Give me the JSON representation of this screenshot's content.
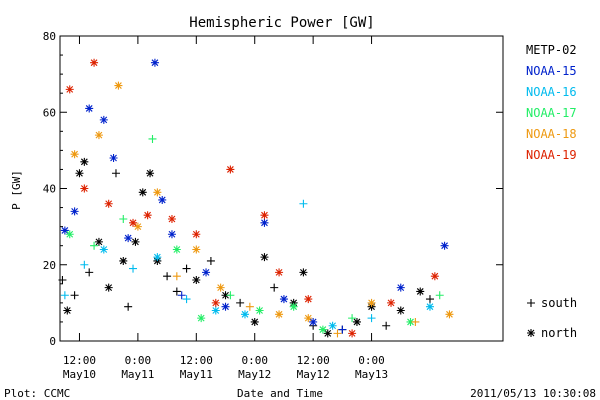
{
  "chart_data": {
    "type": "scatter",
    "title": "Hemispheric Power [GW]",
    "ylabel": "P [GW]",
    "xlabel": "Date and Time",
    "ylim": [
      0,
      80
    ],
    "yticks": [
      0,
      20,
      40,
      60,
      80
    ],
    "xlim": [
      "2011-05-10T08:00",
      "2011-05-14T03:00"
    ],
    "xticks": [
      {
        "time": "2011-05-10T12:00",
        "line1": "12:00",
        "line2": "May10"
      },
      {
        "time": "2011-05-11T00:00",
        "line1": "0:00",
        "line2": "May11"
      },
      {
        "time": "2011-05-11T12:00",
        "line1": "12:00",
        "line2": "May11"
      },
      {
        "time": "2011-05-12T00:00",
        "line1": "0:00",
        "line2": "May12"
      },
      {
        "time": "2011-05-12T12:00",
        "line1": "12:00",
        "line2": "May12"
      },
      {
        "time": "2011-05-13T00:00",
        "line1": "0:00",
        "line2": "May13"
      }
    ],
    "series": [
      {
        "name": "METP-02",
        "color": "#000000",
        "points": [
          {
            "x": "2011-05-10T08:30",
            "y": 16,
            "h": "south"
          },
          {
            "x": "2011-05-10T09:30",
            "y": 8,
            "h": "north"
          },
          {
            "x": "2011-05-10T11:00",
            "y": 12,
            "h": "south"
          },
          {
            "x": "2011-05-10T12:00",
            "y": 44,
            "h": "north"
          },
          {
            "x": "2011-05-10T13:00",
            "y": 47,
            "h": "north"
          },
          {
            "x": "2011-05-10T14:00",
            "y": 18,
            "h": "south"
          },
          {
            "x": "2011-05-10T16:00",
            "y": 26,
            "h": "north"
          },
          {
            "x": "2011-05-10T18:00",
            "y": 14,
            "h": "north"
          },
          {
            "x": "2011-05-10T19:30",
            "y": 44,
            "h": "south"
          },
          {
            "x": "2011-05-10T21:00",
            "y": 21,
            "h": "north"
          },
          {
            "x": "2011-05-10T22:00",
            "y": 9,
            "h": "south"
          },
          {
            "x": "2011-05-10T23:30",
            "y": 26,
            "h": "north"
          },
          {
            "x": "2011-05-11T01:00",
            "y": 39,
            "h": "north"
          },
          {
            "x": "2011-05-11T02:30",
            "y": 44,
            "h": "north"
          },
          {
            "x": "2011-05-11T04:00",
            "y": 21,
            "h": "north"
          },
          {
            "x": "2011-05-11T06:00",
            "y": 17,
            "h": "south"
          },
          {
            "x": "2011-05-11T08:00",
            "y": 13,
            "h": "south"
          },
          {
            "x": "2011-05-11T10:00",
            "y": 19,
            "h": "south"
          },
          {
            "x": "2011-05-11T12:00",
            "y": 16,
            "h": "north"
          },
          {
            "x": "2011-05-11T15:00",
            "y": 21,
            "h": "south"
          },
          {
            "x": "2011-05-11T18:00",
            "y": 12,
            "h": "north"
          },
          {
            "x": "2011-05-11T21:00",
            "y": 10,
            "h": "south"
          },
          {
            "x": "2011-05-12T00:00",
            "y": 5,
            "h": "north"
          },
          {
            "x": "2011-05-12T02:00",
            "y": 22,
            "h": "north"
          },
          {
            "x": "2011-05-12T04:00",
            "y": 14,
            "h": "south"
          },
          {
            "x": "2011-05-12T08:00",
            "y": 10,
            "h": "north"
          },
          {
            "x": "2011-05-12T10:00",
            "y": 18,
            "h": "north"
          },
          {
            "x": "2011-05-12T12:00",
            "y": 4,
            "h": "south"
          },
          {
            "x": "2011-05-12T15:00",
            "y": 2,
            "h": "north"
          },
          {
            "x": "2011-05-12T18:00",
            "y": 3,
            "h": "south"
          },
          {
            "x": "2011-05-12T21:00",
            "y": 5,
            "h": "north"
          },
          {
            "x": "2011-05-13T00:00",
            "y": 9,
            "h": "north"
          },
          {
            "x": "2011-05-13T03:00",
            "y": 4,
            "h": "south"
          },
          {
            "x": "2011-05-13T06:00",
            "y": 8,
            "h": "north"
          },
          {
            "x": "2011-05-13T10:00",
            "y": 13,
            "h": "north"
          },
          {
            "x": "2011-05-13T12:00",
            "y": 11,
            "h": "south"
          }
        ]
      },
      {
        "name": "NOAA-15",
        "color": "#0022cc",
        "points": [
          {
            "x": "2011-05-10T09:00",
            "y": 29,
            "h": "north"
          },
          {
            "x": "2011-05-10T11:00",
            "y": 34,
            "h": "north"
          },
          {
            "x": "2011-05-10T14:00",
            "y": 61,
            "h": "north"
          },
          {
            "x": "2011-05-10T17:00",
            "y": 58,
            "h": "north"
          },
          {
            "x": "2011-05-10T19:00",
            "y": 48,
            "h": "north"
          },
          {
            "x": "2011-05-10T22:00",
            "y": 27,
            "h": "north"
          },
          {
            "x": "2011-05-11T03:30",
            "y": 73,
            "h": "north"
          },
          {
            "x": "2011-05-11T05:00",
            "y": 37,
            "h": "north"
          },
          {
            "x": "2011-05-11T07:00",
            "y": 28,
            "h": "north"
          },
          {
            "x": "2011-05-11T09:00",
            "y": 12,
            "h": "south"
          },
          {
            "x": "2011-05-11T14:00",
            "y": 18,
            "h": "north"
          },
          {
            "x": "2011-05-11T18:00",
            "y": 9,
            "h": "north"
          },
          {
            "x": "2011-05-12T02:00",
            "y": 31,
            "h": "north"
          },
          {
            "x": "2011-05-12T06:00",
            "y": 11,
            "h": "north"
          },
          {
            "x": "2011-05-12T12:00",
            "y": 5,
            "h": "north"
          },
          {
            "x": "2011-05-12T18:00",
            "y": 3,
            "h": "south"
          },
          {
            "x": "2011-05-13T06:00",
            "y": 14,
            "h": "north"
          },
          {
            "x": "2011-05-13T15:00",
            "y": 25,
            "h": "north"
          }
        ]
      },
      {
        "name": "NOAA-16",
        "color": "#00bbee",
        "points": [
          {
            "x": "2011-05-10T09:00",
            "y": 12,
            "h": "south"
          },
          {
            "x": "2011-05-10T13:00",
            "y": 20,
            "h": "south"
          },
          {
            "x": "2011-05-10T17:00",
            "y": 24,
            "h": "north"
          },
          {
            "x": "2011-05-10T23:00",
            "y": 19,
            "h": "south"
          },
          {
            "x": "2011-05-11T04:00",
            "y": 22,
            "h": "north"
          },
          {
            "x": "2011-05-11T10:00",
            "y": 11,
            "h": "south"
          },
          {
            "x": "2011-05-11T16:00",
            "y": 8,
            "h": "north"
          },
          {
            "x": "2011-05-11T22:00",
            "y": 7,
            "h": "north"
          },
          {
            "x": "2011-05-12T10:00",
            "y": 36,
            "h": "south"
          },
          {
            "x": "2011-05-12T16:00",
            "y": 4,
            "h": "north"
          },
          {
            "x": "2011-05-13T00:00",
            "y": 6,
            "h": "south"
          },
          {
            "x": "2011-05-13T12:00",
            "y": 9,
            "h": "north"
          }
        ]
      },
      {
        "name": "NOAA-17",
        "color": "#22ee66",
        "points": [
          {
            "x": "2011-05-10T10:00",
            "y": 28,
            "h": "north"
          },
          {
            "x": "2011-05-10T15:00",
            "y": 25,
            "h": "south"
          },
          {
            "x": "2011-05-10T21:00",
            "y": 32,
            "h": "south"
          },
          {
            "x": "2011-05-11T03:00",
            "y": 53,
            "h": "south"
          },
          {
            "x": "2011-05-11T08:00",
            "y": 24,
            "h": "north"
          },
          {
            "x": "2011-05-11T13:00",
            "y": 6,
            "h": "north"
          },
          {
            "x": "2011-05-11T19:00",
            "y": 12,
            "h": "south"
          },
          {
            "x": "2011-05-12T01:00",
            "y": 8,
            "h": "north"
          },
          {
            "x": "2011-05-12T08:00",
            "y": 9,
            "h": "north"
          },
          {
            "x": "2011-05-12T14:00",
            "y": 3,
            "h": "north"
          },
          {
            "x": "2011-05-12T20:00",
            "y": 6,
            "h": "south"
          },
          {
            "x": "2011-05-13T08:00",
            "y": 5,
            "h": "north"
          },
          {
            "x": "2011-05-13T14:00",
            "y": 12,
            "h": "south"
          }
        ]
      },
      {
        "name": "NOAA-18",
        "color": "#ee9911",
        "points": [
          {
            "x": "2011-05-10T11:00",
            "y": 49,
            "h": "north"
          },
          {
            "x": "2011-05-10T16:00",
            "y": 54,
            "h": "north"
          },
          {
            "x": "2011-05-10T20:00",
            "y": 67,
            "h": "north"
          },
          {
            "x": "2011-05-11T00:00",
            "y": 30,
            "h": "north"
          },
          {
            "x": "2011-05-11T04:00",
            "y": 39,
            "h": "north"
          },
          {
            "x": "2011-05-11T08:00",
            "y": 17,
            "h": "south"
          },
          {
            "x": "2011-05-11T12:00",
            "y": 24,
            "h": "north"
          },
          {
            "x": "2011-05-11T17:00",
            "y": 14,
            "h": "north"
          },
          {
            "x": "2011-05-11T23:00",
            "y": 9,
            "h": "south"
          },
          {
            "x": "2011-05-12T05:00",
            "y": 7,
            "h": "north"
          },
          {
            "x": "2011-05-12T11:00",
            "y": 6,
            "h": "north"
          },
          {
            "x": "2011-05-12T17:00",
            "y": 2,
            "h": "south"
          },
          {
            "x": "2011-05-13T00:00",
            "y": 10,
            "h": "north"
          },
          {
            "x": "2011-05-13T09:00",
            "y": 5,
            "h": "south"
          },
          {
            "x": "2011-05-13T16:00",
            "y": 7,
            "h": "north"
          }
        ]
      },
      {
        "name": "NOAA-19",
        "color": "#dd2200",
        "points": [
          {
            "x": "2011-05-10T10:00",
            "y": 66,
            "h": "north"
          },
          {
            "x": "2011-05-10T13:00",
            "y": 40,
            "h": "north"
          },
          {
            "x": "2011-05-10T15:00",
            "y": 73,
            "h": "north"
          },
          {
            "x": "2011-05-10T18:00",
            "y": 36,
            "h": "north"
          },
          {
            "x": "2011-05-10T23:00",
            "y": 31,
            "h": "north"
          },
          {
            "x": "2011-05-11T02:00",
            "y": 33,
            "h": "north"
          },
          {
            "x": "2011-05-11T07:00",
            "y": 32,
            "h": "north"
          },
          {
            "x": "2011-05-11T12:00",
            "y": 28,
            "h": "north"
          },
          {
            "x": "2011-05-11T16:00",
            "y": 10,
            "h": "north"
          },
          {
            "x": "2011-05-11T19:00",
            "y": 45,
            "h": "north"
          },
          {
            "x": "2011-05-12T02:00",
            "y": 33,
            "h": "north"
          },
          {
            "x": "2011-05-12T05:00",
            "y": 18,
            "h": "north"
          },
          {
            "x": "2011-05-12T11:00",
            "y": 11,
            "h": "north"
          },
          {
            "x": "2011-05-12T20:00",
            "y": 2,
            "h": "north"
          },
          {
            "x": "2011-05-13T04:00",
            "y": 10,
            "h": "north"
          },
          {
            "x": "2011-05-13T13:00",
            "y": 17,
            "h": "north"
          }
        ]
      }
    ],
    "marker_key": [
      {
        "symbol": "+",
        "label": "south"
      },
      {
        "symbol": "*",
        "label": "north"
      }
    ],
    "legend_position": "right"
  },
  "footer": {
    "credit": "Plot: CCMC",
    "timestamp": "2011/05/13 10:30:08"
  }
}
